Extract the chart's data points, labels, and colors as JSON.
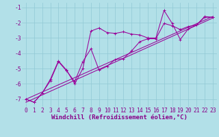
{
  "background_color": "#b2e0e8",
  "grid_color": "#90c8d4",
  "line_color": "#990099",
  "xlabel": "Windchill (Refroidissement éolien,°C)",
  "xlabel_fontsize": 6.5,
  "tick_fontsize": 5.8,
  "xlim": [
    -0.5,
    23.5
  ],
  "ylim": [
    -7.5,
    -0.7
  ],
  "yticks": [
    -7,
    -6,
    -5,
    -4,
    -3,
    -2,
    -1
  ],
  "xticks": [
    0,
    1,
    2,
    3,
    4,
    5,
    6,
    7,
    8,
    9,
    10,
    11,
    12,
    13,
    14,
    15,
    16,
    17,
    18,
    19,
    20,
    21,
    22,
    23
  ],
  "line1_x": [
    0,
    1,
    2,
    3,
    4,
    5,
    6,
    7,
    8,
    9,
    10,
    11,
    12,
    13,
    14,
    15,
    16,
    17,
    18,
    19,
    20,
    21,
    22,
    23
  ],
  "line1_y": [
    -7.0,
    -7.2,
    -6.6,
    -5.7,
    -4.5,
    -5.1,
    -6.0,
    -5.0,
    -2.55,
    -2.35,
    -2.65,
    -2.7,
    -2.6,
    -2.75,
    -2.8,
    -3.0,
    -3.0,
    -1.2,
    -2.05,
    -3.1,
    -2.4,
    -2.15,
    -1.6,
    -1.65
  ],
  "line2_x": [
    0,
    1,
    2,
    3,
    4,
    5,
    6,
    7,
    8,
    9,
    10,
    11,
    12,
    13,
    14,
    15,
    16,
    17,
    18,
    19,
    20,
    21,
    22,
    23
  ],
  "line2_y": [
    -7.0,
    -7.2,
    -6.6,
    -5.8,
    -4.55,
    -5.15,
    -5.85,
    -4.55,
    -3.7,
    -5.1,
    -4.85,
    -4.4,
    -4.35,
    -3.85,
    -3.25,
    -3.05,
    -3.05,
    -2.05,
    -2.2,
    -2.45,
    -2.25,
    -2.15,
    -1.65,
    -1.65
  ],
  "line3_x": [
    0,
    23
  ],
  "line3_y": [
    -7.0,
    -1.6
  ],
  "line4_x": [
    0,
    23
  ],
  "line4_y": [
    -7.2,
    -1.7
  ]
}
